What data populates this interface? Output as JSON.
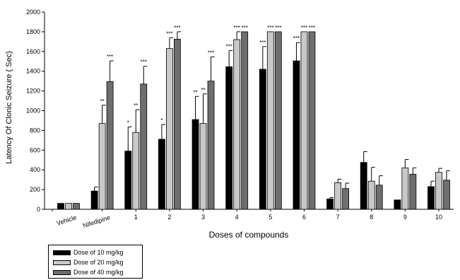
{
  "chart_data": {
    "type": "bar",
    "xlabel": "Doses of compounds",
    "ylabel": "Latency Of Clonic Seizure ( Sec)",
    "ylim": [
      0,
      2000
    ],
    "yticks": [
      0,
      200,
      400,
      600,
      800,
      1000,
      1200,
      1400,
      1600,
      1800,
      2000
    ],
    "grid": false,
    "legend_position": "bottom-left",
    "categories": [
      "Vehicle",
      "Nifedipine",
      "1",
      "2",
      "3",
      "4",
      "5",
      "6",
      "7",
      "8",
      "9",
      "10"
    ],
    "series": [
      {
        "name": "Dose of 10 mg/kg",
        "color": "#000000",
        "values": [
          60,
          185,
          590,
          710,
          910,
          1445,
          1420,
          1505,
          105,
          475,
          95,
          230
        ],
        "errors": [
          0,
          40,
          245,
          150,
          235,
          165,
          230,
          185,
          15,
          110,
          0,
          55
        ],
        "annotations": [
          "",
          "",
          "*",
          "*",
          "**",
          "***",
          "***",
          "***",
          "",
          "",
          "",
          ""
        ]
      },
      {
        "name": "Dose of 20 mg/kg",
        "color": "#c8c8c8",
        "values": [
          60,
          870,
          780,
          1630,
          870,
          1720,
          1800,
          1800,
          270,
          285,
          420,
          375
        ],
        "errors": [
          0,
          185,
          230,
          110,
          300,
          80,
          0,
          0,
          35,
          140,
          85,
          40
        ],
        "annotations": [
          "",
          "**",
          "**",
          "***",
          "**",
          "***",
          "***",
          "***",
          "",
          "",
          "",
          ""
        ]
      },
      {
        "name": "Dose of 40 mg/kg",
        "color": "#6e6e6e",
        "values": [
          60,
          1295,
          1270,
          1725,
          1300,
          1800,
          1800,
          1800,
          210,
          245,
          355,
          295
        ],
        "errors": [
          0,
          210,
          180,
          75,
          245,
          0,
          0,
          0,
          55,
          95,
          65,
          95
        ],
        "annotations": [
          "",
          "***",
          "***",
          "***",
          "***",
          "***",
          "***",
          "***",
          "",
          "",
          "",
          ""
        ]
      }
    ]
  }
}
